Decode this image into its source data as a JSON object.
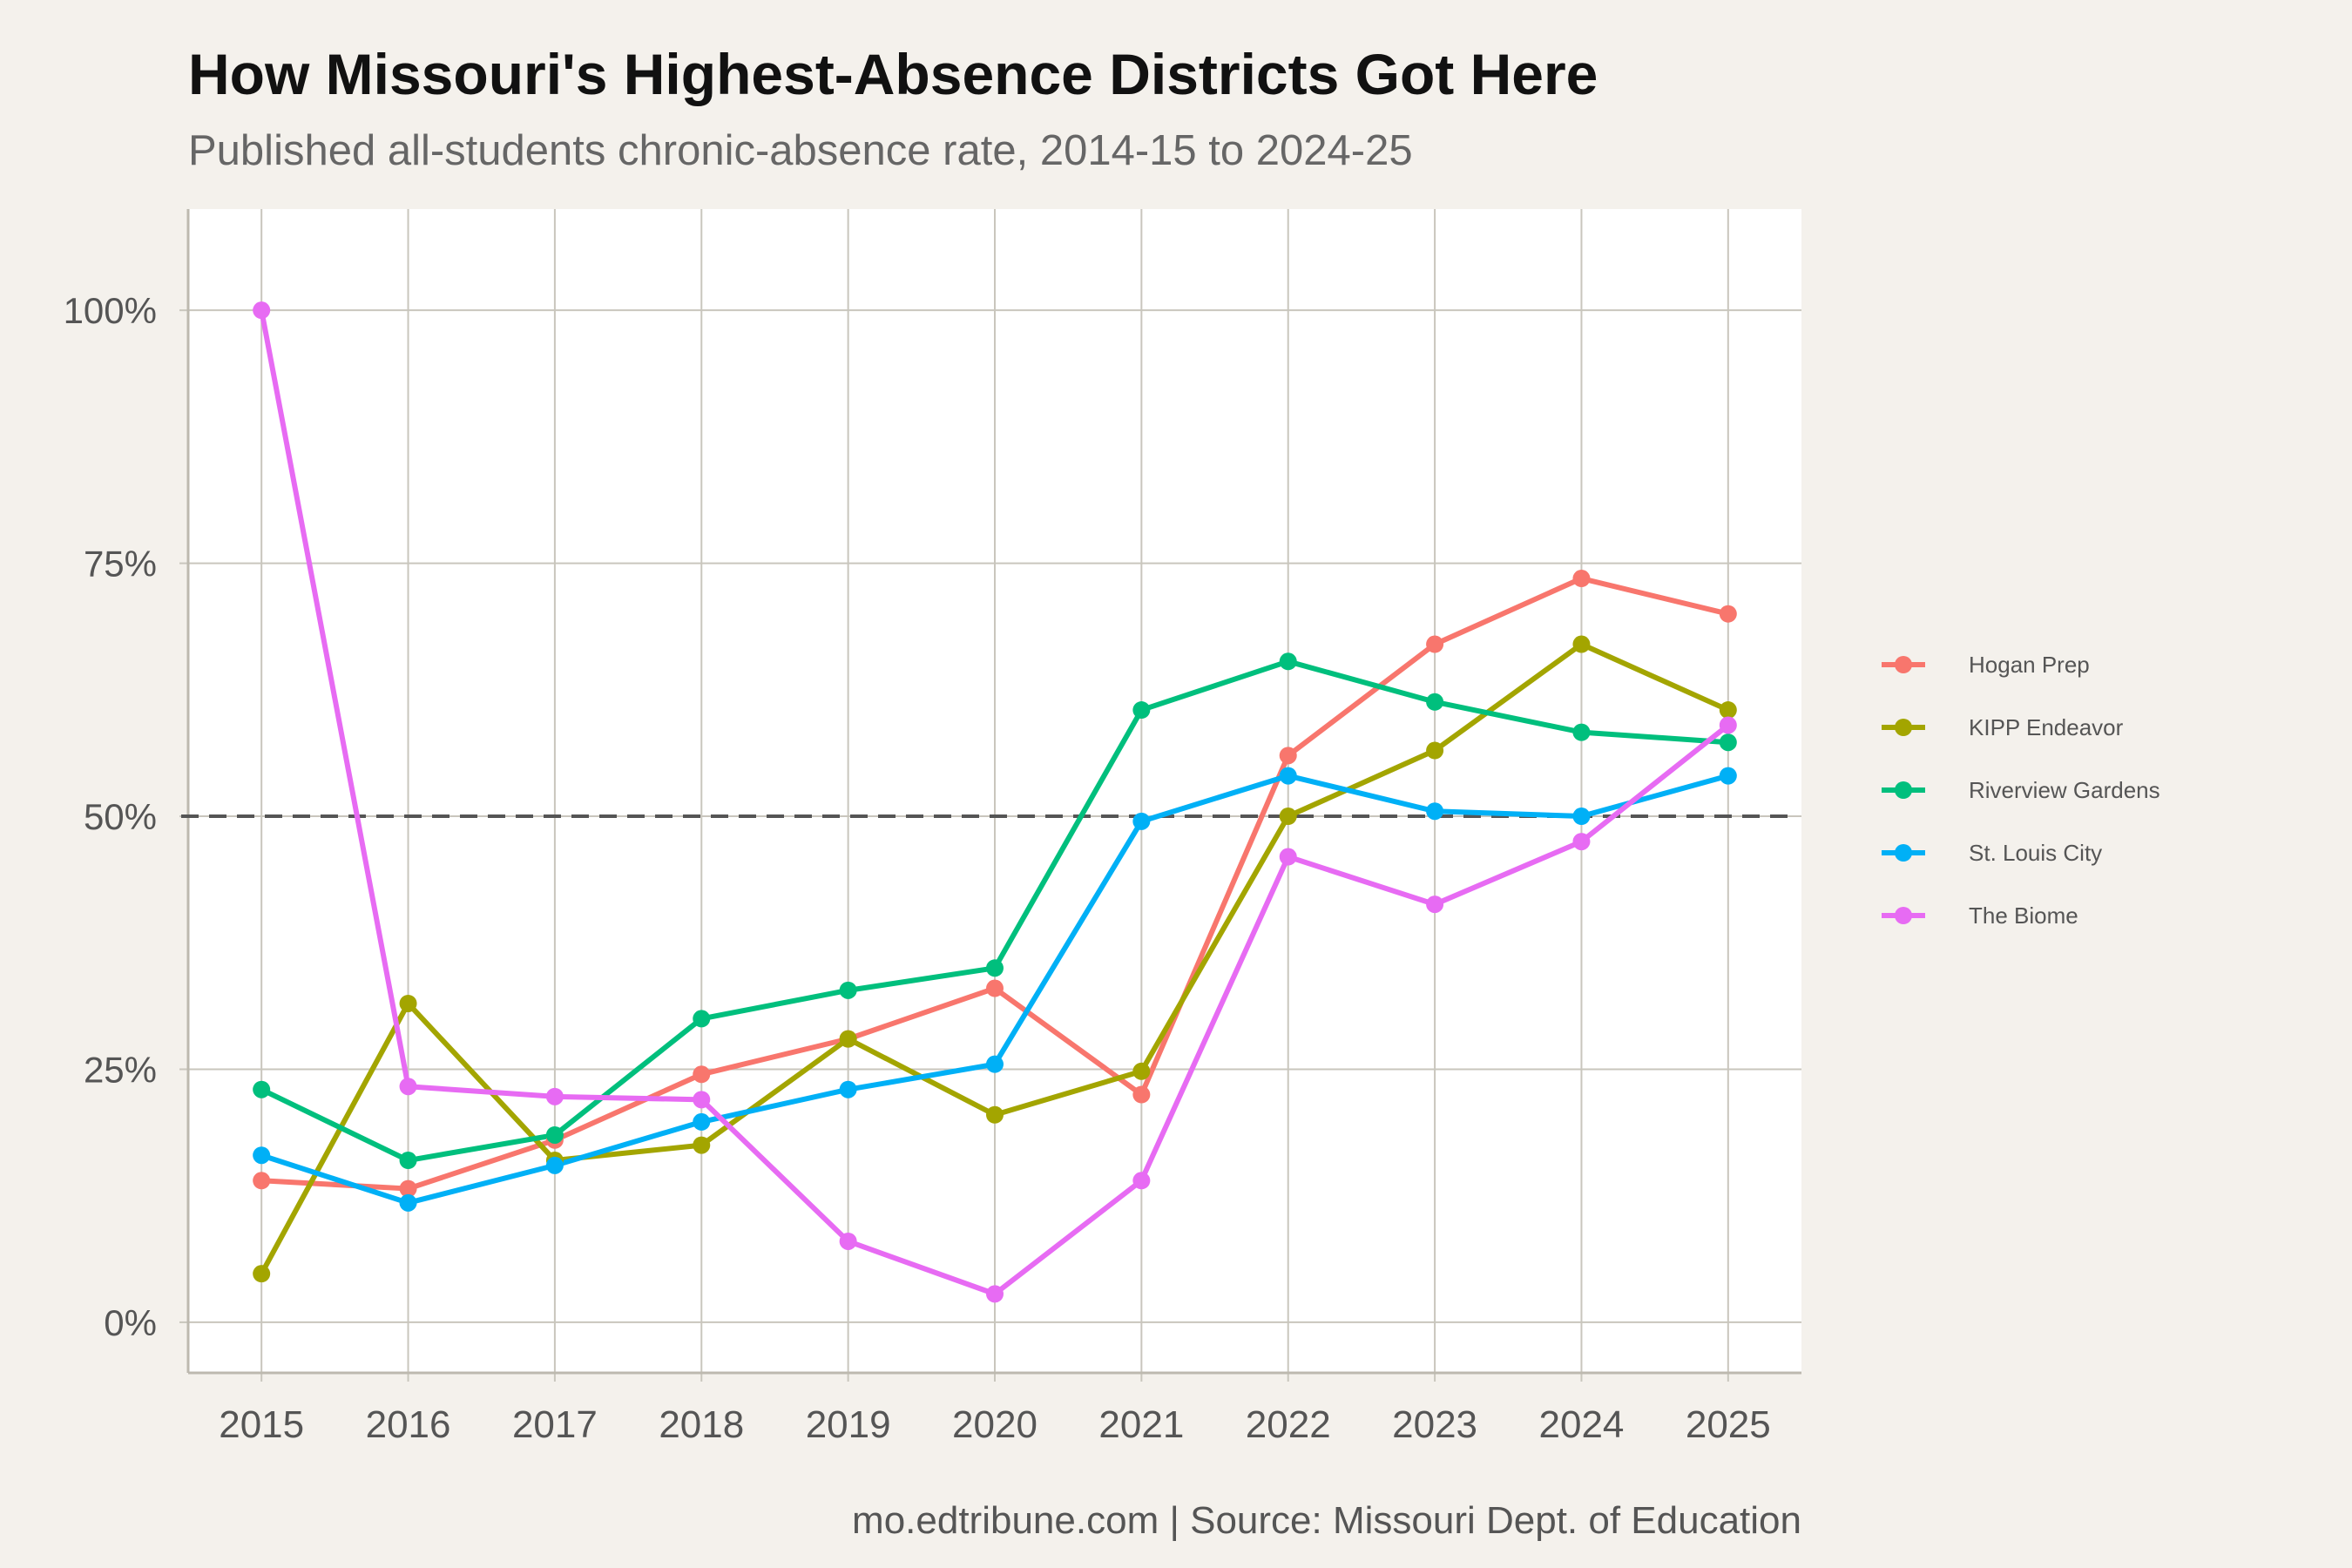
{
  "title": "How Missouri's Highest-Absence Districts Got Here",
  "subtitle": "Published all-students chronic-absence rate, 2014-15 to 2024-25",
  "caption": "mo.edtribune.com | Source: Missouri Dept. of Education",
  "chart_data": {
    "type": "line",
    "x": [
      2015,
      2016,
      2017,
      2018,
      2019,
      2020,
      2021,
      2022,
      2023,
      2024,
      2025
    ],
    "x_tick_labels": [
      "2015",
      "2016",
      "2017",
      "2018",
      "2019",
      "2020",
      "2021",
      "2022",
      "2023",
      "2024",
      "2025"
    ],
    "y_ticks": [
      0,
      25,
      50,
      75,
      100
    ],
    "y_tick_labels": [
      "0%",
      "25%",
      "50%",
      "75%",
      "100%"
    ],
    "ylim": [
      -5,
      110
    ],
    "xlim": [
      2014.5,
      2025.5
    ],
    "reference_line": {
      "y": 50,
      "style": "dashed",
      "color": "#555555"
    },
    "grid": true,
    "legend_position": "right",
    "series": [
      {
        "name": "Hogan Prep",
        "color": "#f8766d",
        "values": [
          14,
          13.2,
          18,
          24.5,
          28,
          33,
          22.5,
          56,
          67,
          73.5,
          70
        ]
      },
      {
        "name": "KIPP Endeavor",
        "color": "#a3a500",
        "values": [
          4.8,
          31.5,
          16,
          17.5,
          28,
          20.5,
          24.8,
          50,
          56.5,
          67,
          60.5
        ]
      },
      {
        "name": "Riverview Gardens",
        "color": "#00bf7d",
        "values": [
          23,
          16,
          18.5,
          30,
          32.8,
          35,
          60.5,
          65.3,
          61.3,
          58.3,
          57.3
        ]
      },
      {
        "name": "St. Louis City",
        "color": "#00b0f6",
        "values": [
          16.5,
          11.8,
          15.5,
          19.8,
          23,
          25.5,
          49.5,
          54,
          50.5,
          50,
          54
        ]
      },
      {
        "name": "The Biome",
        "color": "#e76bf3",
        "values": [
          100,
          23.3,
          22.3,
          22,
          8,
          2.8,
          14,
          46,
          41.3,
          47.5,
          59
        ]
      }
    ]
  }
}
